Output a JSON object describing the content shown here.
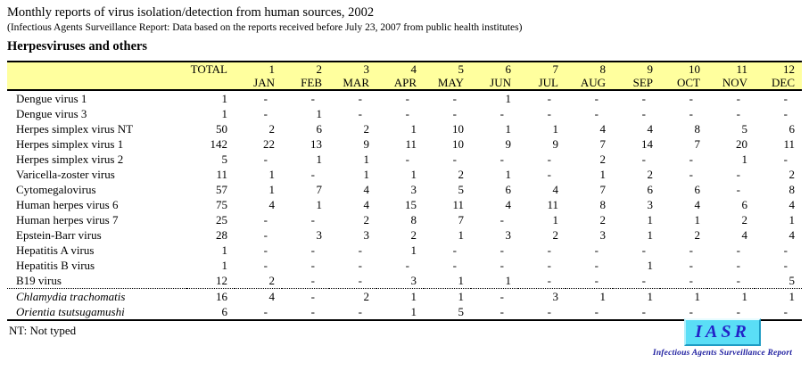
{
  "header": {
    "title": "Monthly reports of virus isolation/detection from human sources, 2002",
    "subtitle": "(Infectious Agents Surveillance Report: Data based on the reports received before July 23, 2007 from public health institutes)",
    "section_title": "Herpesviruses and others"
  },
  "table": {
    "total_label": "TOTAL",
    "months": [
      {
        "number": "1",
        "name": "JAN"
      },
      {
        "number": "2",
        "name": "FEB"
      },
      {
        "number": "3",
        "name": "MAR"
      },
      {
        "number": "4",
        "name": "APR"
      },
      {
        "number": "5",
        "name": "MAY"
      },
      {
        "number": "6",
        "name": "JUN"
      },
      {
        "number": "7",
        "name": "JUL"
      },
      {
        "number": "8",
        "name": "AUG"
      },
      {
        "number": "9",
        "name": "SEP"
      },
      {
        "number": "10",
        "name": "OCT"
      },
      {
        "number": "11",
        "name": "NOV"
      },
      {
        "number": "12",
        "name": "DEC"
      }
    ],
    "rows": [
      {
        "name": "Dengue virus 1",
        "italic": false,
        "separator_above": false,
        "total": "1",
        "values": [
          "-",
          "-",
          "-",
          "-",
          "-",
          "1",
          "-",
          "-",
          "-",
          "-",
          "-",
          "-"
        ]
      },
      {
        "name": "Dengue virus 3",
        "italic": false,
        "separator_above": false,
        "total": "1",
        "values": [
          "-",
          "1",
          "-",
          "-",
          "-",
          "-",
          "-",
          "-",
          "-",
          "-",
          "-",
          "-"
        ]
      },
      {
        "name": "Herpes simplex virus NT",
        "italic": false,
        "separator_above": false,
        "total": "50",
        "values": [
          "2",
          "6",
          "2",
          "1",
          "10",
          "1",
          "1",
          "4",
          "4",
          "8",
          "5",
          "6"
        ]
      },
      {
        "name": "Herpes simplex virus 1",
        "italic": false,
        "separator_above": false,
        "total": "142",
        "values": [
          "22",
          "13",
          "9",
          "11",
          "10",
          "9",
          "9",
          "7",
          "14",
          "7",
          "20",
          "11"
        ]
      },
      {
        "name": "Herpes simplex virus 2",
        "italic": false,
        "separator_above": false,
        "total": "5",
        "values": [
          "-",
          "1",
          "1",
          "-",
          "-",
          "-",
          "-",
          "2",
          "-",
          "-",
          "1",
          "-"
        ]
      },
      {
        "name": "Varicella-zoster virus",
        "italic": false,
        "separator_above": false,
        "total": "11",
        "values": [
          "1",
          "-",
          "1",
          "1",
          "2",
          "1",
          "-",
          "1",
          "2",
          "-",
          "-",
          "2"
        ]
      },
      {
        "name": "Cytomegalovirus",
        "italic": false,
        "separator_above": false,
        "total": "57",
        "values": [
          "1",
          "7",
          "4",
          "3",
          "5",
          "6",
          "4",
          "7",
          "6",
          "6",
          "-",
          "8"
        ]
      },
      {
        "name": "Human herpes virus 6",
        "italic": false,
        "separator_above": false,
        "total": "75",
        "values": [
          "4",
          "1",
          "4",
          "15",
          "11",
          "4",
          "11",
          "8",
          "3",
          "4",
          "6",
          "4"
        ]
      },
      {
        "name": "Human herpes virus 7",
        "italic": false,
        "separator_above": false,
        "total": "25",
        "values": [
          "-",
          "-",
          "2",
          "8",
          "7",
          "-",
          "1",
          "2",
          "1",
          "1",
          "2",
          "1"
        ]
      },
      {
        "name": "Epstein-Barr virus",
        "italic": false,
        "separator_above": false,
        "total": "28",
        "values": [
          "-",
          "3",
          "3",
          "2",
          "1",
          "3",
          "2",
          "3",
          "1",
          "2",
          "4",
          "4"
        ]
      },
      {
        "name": "Hepatitis A virus",
        "italic": false,
        "separator_above": false,
        "total": "1",
        "values": [
          "-",
          "-",
          "-",
          "1",
          "-",
          "-",
          "-",
          "-",
          "-",
          "-",
          "-",
          "-"
        ]
      },
      {
        "name": "Hepatitis B virus",
        "italic": false,
        "separator_above": false,
        "total": "1",
        "values": [
          "-",
          "-",
          "-",
          "-",
          "-",
          "-",
          "-",
          "-",
          "1",
          "-",
          "-",
          "-"
        ]
      },
      {
        "name": "B19 virus",
        "italic": false,
        "separator_above": false,
        "total": "12",
        "values": [
          "2",
          "-",
          "-",
          "3",
          "1",
          "1",
          "-",
          "-",
          "-",
          "-",
          "-",
          "5"
        ]
      },
      {
        "name": "Chlamydia trachomatis",
        "italic": true,
        "separator_above": true,
        "total": "16",
        "values": [
          "4",
          "-",
          "2",
          "1",
          "1",
          "-",
          "3",
          "1",
          "1",
          "1",
          "1",
          "1"
        ]
      },
      {
        "name": "Orientia tsutsugamushi",
        "italic": true,
        "separator_above": false,
        "total": "6",
        "values": [
          "-",
          "-",
          "-",
          "1",
          "5",
          "-",
          "-",
          "-",
          "-",
          "-",
          "-",
          "-"
        ]
      }
    ]
  },
  "footnote": "NT: Not typed",
  "logo": {
    "text": "IASR",
    "caption": "Infectious Agents Surveillance Report",
    "box_color": "#5ADEF6",
    "text_color": "#2323C8"
  },
  "colors": {
    "header_background": "#FFFF9E",
    "table_border": "#000000"
  }
}
